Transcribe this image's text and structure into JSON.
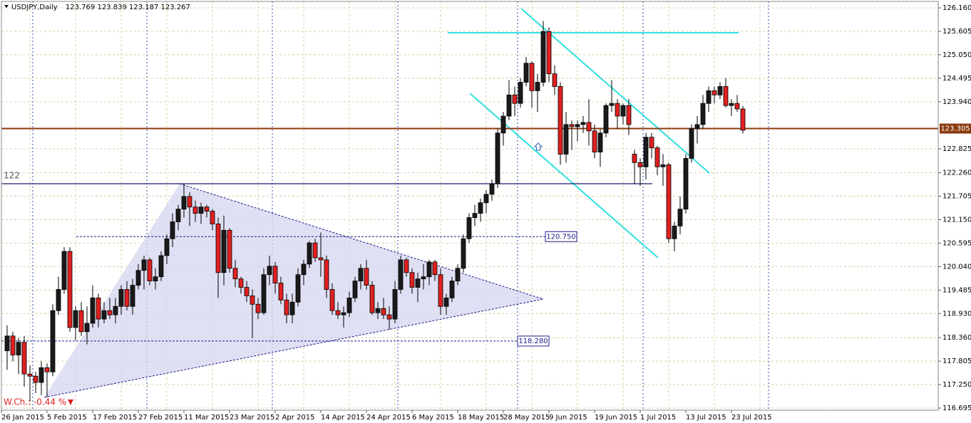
{
  "chart_data": {
    "type": "candlestick",
    "title": "USDJPY,Daily",
    "categories": [
      "26 Jan 2015",
      null,
      null,
      null,
      null,
      null,
      null,
      null,
      "5 Feb 2015",
      null,
      null,
      null,
      null,
      null,
      null,
      null,
      "17 Feb 2015",
      null,
      null,
      null,
      null,
      null,
      null,
      null,
      "27 Feb 2015",
      null,
      null,
      null,
      null,
      null,
      null,
      null,
      "11 Mar 2015",
      null,
      null,
      null,
      null,
      null,
      null,
      null,
      "23 Mar 2015",
      null,
      null,
      null,
      null,
      null,
      null,
      null,
      "2 Apr 2015",
      null,
      null,
      null,
      null,
      null,
      null,
      null,
      "14 Apr 2015",
      null,
      null,
      null,
      null,
      null,
      null,
      null,
      "24 Apr 2015",
      null,
      null,
      null,
      null,
      null,
      null,
      null,
      "6 May 2015",
      null,
      null,
      null,
      null,
      null,
      null,
      null,
      "18 May 2015",
      null,
      null,
      null,
      null,
      null,
      null,
      null,
      "28 May 2015",
      null,
      null,
      null,
      null,
      null,
      null,
      null,
      "9 Jun 2015",
      null,
      null,
      null,
      null,
      null,
      null,
      null,
      "19 Jun 2015",
      null,
      null,
      null,
      null,
      null,
      null,
      null,
      "1 Jul 2015",
      null,
      null,
      null,
      null,
      null,
      null,
      null,
      "13 Jul 2015",
      null,
      null,
      null,
      null,
      null,
      null,
      null,
      "23 Jul 2015",
      null
    ],
    "open": [
      118.05,
      118.4,
      117.95,
      118.25,
      117.5,
      117.45,
      117.3,
      117.65,
      117.55,
      119.0,
      119.5,
      120.4,
      118.6,
      119.0,
      118.5,
      118.7,
      119.3,
      118.8,
      119.0,
      118.9,
      119.1,
      119.5,
      119.1,
      119.6,
      119.95,
      120.2,
      119.7,
      119.8,
      120.3,
      120.7,
      121.1,
      121.4,
      121.7,
      121.45,
      121.3,
      121.45,
      121.35,
      121.05,
      119.9,
      120.9,
      120.0,
      119.75,
      119.55,
      119.35,
      119.15,
      118.95,
      119.85,
      120.05,
      119.65,
      119.25,
      118.9,
      119.2,
      119.85,
      120.1,
      120.6,
      120.25,
      120.2,
      119.5,
      119.0,
      118.9,
      118.95,
      119.3,
      119.7,
      120.0,
      119.6,
      118.95,
      119.05,
      118.9,
      118.8,
      119.5,
      120.2,
      119.9,
      119.55,
      119.75,
      119.8,
      120.15,
      119.85,
      119.1,
      119.3,
      119.7,
      120.0,
      120.7,
      121.2,
      121.3,
      121.55,
      121.75,
      122.0,
      123.2,
      123.6,
      124.1,
      123.9,
      124.4,
      124.85,
      124.2,
      124.4,
      125.6,
      124.6,
      124.3,
      122.7,
      123.4,
      123.35,
      123.4,
      123.45,
      123.25,
      122.75,
      123.2,
      123.85,
      123.9,
      123.6,
      123.85,
      122.7,
      122.5,
      122.4,
      123.1,
      122.85,
      122.4,
      122.45,
      120.7,
      121.0,
      121.4,
      122.6,
      123.3,
      123.4,
      123.9,
      124.2,
      124.1,
      124.3,
      123.85,
      123.9,
      123.769
    ],
    "high": [
      118.65,
      118.5,
      118.35,
      118.4,
      117.7,
      117.55,
      117.8,
      117.75,
      119.15,
      119.8,
      120.5,
      120.5,
      119.1,
      119.2,
      119.1,
      119.6,
      119.4,
      119.2,
      119.3,
      119.3,
      119.6,
      119.7,
      119.75,
      120.1,
      120.3,
      120.25,
      120.0,
      120.4,
      120.8,
      121.3,
      121.5,
      122.0,
      121.8,
      121.6,
      121.55,
      121.5,
      121.4,
      121.2,
      121.25,
      120.95,
      120.2,
      119.8,
      119.7,
      119.5,
      119.3,
      120.0,
      120.3,
      120.15,
      119.8,
      119.4,
      119.4,
      120.0,
      120.2,
      120.65,
      120.7,
      120.85,
      120.3,
      119.65,
      119.2,
      119.1,
      119.45,
      119.8,
      120.1,
      120.2,
      119.7,
      119.2,
      119.3,
      119.1,
      119.7,
      120.3,
      120.25,
      120.0,
      119.9,
      120.1,
      120.2,
      120.2,
      120.0,
      119.4,
      119.8,
      120.1,
      120.8,
      121.3,
      121.5,
      121.65,
      121.85,
      122.1,
      123.3,
      123.7,
      124.45,
      124.3,
      124.5,
      125.0,
      124.9,
      124.6,
      125.85,
      125.7,
      124.8,
      124.4,
      123.7,
      123.5,
      123.5,
      123.6,
      124.0,
      123.4,
      123.3,
      123.9,
      124.45,
      124.0,
      123.9,
      124.0,
      122.8,
      122.6,
      123.2,
      123.2,
      122.9,
      122.7,
      122.5,
      121.1,
      121.7,
      122.7,
      123.4,
      123.6,
      124.1,
      124.3,
      124.3,
      124.4,
      124.5,
      124.0,
      124.1,
      123.839
    ],
    "low": [
      117.6,
      117.8,
      117.5,
      117.2,
      116.85,
      117.05,
      117.0,
      116.95,
      117.45,
      118.9,
      119.4,
      118.5,
      118.3,
      118.4,
      118.2,
      118.6,
      118.6,
      118.7,
      118.8,
      118.7,
      118.9,
      119.0,
      118.9,
      119.5,
      119.5,
      119.6,
      119.5,
      119.7,
      120.1,
      120.5,
      120.9,
      121.2,
      121.0,
      121.1,
      121.05,
      121.2,
      120.9,
      119.3,
      119.6,
      119.9,
      119.55,
      119.4,
      119.2,
      118.35,
      118.8,
      118.9,
      119.6,
      119.4,
      119.15,
      118.7,
      118.7,
      119.1,
      119.6,
      120.0,
      120.15,
      119.8,
      119.3,
      118.9,
      118.8,
      118.6,
      118.85,
      119.2,
      119.5,
      119.5,
      118.9,
      118.8,
      118.8,
      118.55,
      118.7,
      119.4,
      119.8,
      119.4,
      119.2,
      119.5,
      119.6,
      119.7,
      118.9,
      118.9,
      119.2,
      119.6,
      119.9,
      120.6,
      121.0,
      121.1,
      121.3,
      121.6,
      121.9,
      122.9,
      123.5,
      123.6,
      123.8,
      124.3,
      123.8,
      123.7,
      124.3,
      124.4,
      124.1,
      122.45,
      122.5,
      122.8,
      123.0,
      123.2,
      122.9,
      122.6,
      122.4,
      123.1,
      123.7,
      123.3,
      123.4,
      123.15,
      122.0,
      121.95,
      122.1,
      122.6,
      122.2,
      121.95,
      120.6,
      120.4,
      120.8,
      121.3,
      122.5,
      122.95,
      123.3,
      123.7,
      123.9,
      124.0,
      123.8,
      123.6,
      123.7,
      123.187
    ],
    "close": [
      118.4,
      117.95,
      118.25,
      117.5,
      117.45,
      117.3,
      117.65,
      117.55,
      119.0,
      119.5,
      120.4,
      118.6,
      119.0,
      118.5,
      118.7,
      119.3,
      118.8,
      119.0,
      118.9,
      119.1,
      119.5,
      119.1,
      119.6,
      119.95,
      120.2,
      119.7,
      119.8,
      120.3,
      120.7,
      121.1,
      121.4,
      121.7,
      121.45,
      121.3,
      121.45,
      121.35,
      121.05,
      119.9,
      120.9,
      120.0,
      119.75,
      119.55,
      119.35,
      119.15,
      118.95,
      119.85,
      120.05,
      119.65,
      119.25,
      118.9,
      119.2,
      119.85,
      120.1,
      120.6,
      120.25,
      120.2,
      119.5,
      119.0,
      118.9,
      118.95,
      119.3,
      119.7,
      120.0,
      119.6,
      118.95,
      119.05,
      118.9,
      118.8,
      119.5,
      120.2,
      119.9,
      119.55,
      119.75,
      119.8,
      120.15,
      119.85,
      119.1,
      119.3,
      119.7,
      120.0,
      120.7,
      121.2,
      121.3,
      121.55,
      121.75,
      122.0,
      123.2,
      123.6,
      124.1,
      123.9,
      124.4,
      124.85,
      124.2,
      124.4,
      125.6,
      124.6,
      124.3,
      122.7,
      123.4,
      123.35,
      123.4,
      123.45,
      123.25,
      122.75,
      123.2,
      123.85,
      123.9,
      123.6,
      123.85,
      123.4,
      122.5,
      122.4,
      123.1,
      122.85,
      122.4,
      122.45,
      120.7,
      121.0,
      121.4,
      122.6,
      123.3,
      123.4,
      123.9,
      124.2,
      124.1,
      124.3,
      123.85,
      123.9,
      123.77,
      123.267
    ],
    "up_color": "#1a1a1a",
    "down_color": "#e02020",
    "ylim": [
      116.645,
      126.312
    ],
    "yticks": [
      {
        "value": 126.16,
        "label": "126.160"
      },
      125.605,
      {
        "value": 125.05,
        "label": "125.050"
      },
      124.495,
      {
        "value": 123.94,
        "label": "123.940"
      },
      122.825,
      {
        "value": 122.26,
        "label": "122.260"
      },
      121.705,
      {
        "value": 121.15,
        "label": "121.150"
      },
      120.595,
      {
        "value": 120.04,
        "label": "120.040"
      },
      119.485,
      {
        "value": 118.93,
        "label": "118.930"
      },
      {
        "value": 118.36,
        "label": "118.360"
      },
      117.805,
      {
        "value": 117.25,
        "label": "117.250"
      },
      116.695
    ],
    "grid": true,
    "annotations": {
      "level_122": 122,
      "level_upper": {
        "value": 120.75,
        "label": "120.750"
      },
      "level_lower": {
        "value": 118.28,
        "label": "118.280"
      },
      "current_price": 123.305
    },
    "weekly_change": "W.Ch.: -0.44 %"
  }
}
